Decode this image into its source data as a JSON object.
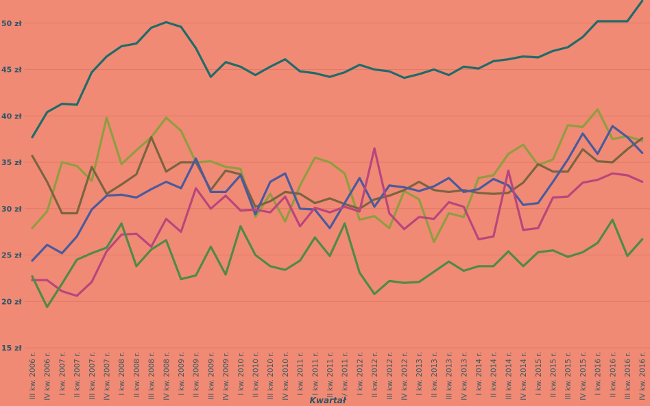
{
  "chart_data": {
    "type": "line",
    "title": "",
    "xlabel": "Kwartał",
    "ylabel": "",
    "ylim": [
      15,
      52.5
    ],
    "y_ticks": [
      "15 zł",
      "20 zł",
      "25 zł",
      "30 zł",
      "35 zł",
      "40 zł",
      "45 zł",
      "50 zł"
    ],
    "y_tick_values": [
      15,
      20,
      25,
      30,
      35,
      40,
      45,
      50
    ],
    "grid": "horizontal",
    "legend": "none",
    "background": "#f08a74",
    "categories": [
      "III kw. 2006 r.",
      "IV kw. 2006 r.",
      "I kw. 2007 r.",
      "II kw. 2007 r.",
      "III kw. 2007 r.",
      "IV kw. 2007 r.",
      "I kw. 2008 r.",
      "II kw. 2008 r.",
      "III kw. 2008 r.",
      "IV kw. 2008 r.",
      "I kw. 2009 r.",
      "II kw. 2009 r.",
      "III kw. 2009 r.",
      "IV kw. 2009 r.",
      "I kw. 2010 r.",
      "II kw. 2010 r.",
      "III kw. 2010 r.",
      "IV kw. 2010 r.",
      "I kw. 2011 r.",
      "II kw. 2011 r.",
      "III kw. 2011 r.",
      "IV kw. 2011 r.",
      "I kw. 2012 r.",
      "II kw. 2012 r.",
      "III kw. 2012 r.",
      "IV kw. 2012 r.",
      "I kw. 2013 r.",
      "II kw. 2013 r.",
      "III kw. 2013 r.",
      "IV kw. 2013 r.",
      "I kw. 2014 r.",
      "II kw. 2014 r.",
      "III kw. 2014 r.",
      "IV kw. 2014 r.",
      "I kw. 2015 r.",
      "II kw. 2015 r.",
      "III kw. 2015 r.",
      "IV kw. 2015 r.",
      "I kw. 2016 r.",
      "II kw. 2016 r.",
      "III kw. 2016 r.",
      "IV kw. 2016 r."
    ],
    "series": [
      {
        "color": "#1f6b6a",
        "values": [
          37.7,
          40.4,
          41.3,
          41.2,
          44.7,
          46.4,
          47.5,
          47.8,
          49.5,
          50.1,
          49.6,
          47.3,
          44.2,
          45.8,
          45.3,
          44.4,
          45.3,
          46.1,
          44.8,
          44.6,
          44.2,
          44.7,
          45.5,
          45.0,
          44.8,
          44.1,
          44.5,
          45.0,
          44.4,
          45.3,
          45.1,
          45.9,
          46.1,
          46.4,
          46.3,
          47.0,
          47.4,
          48.5,
          50.2,
          50.2,
          50.2,
          52.4
        ]
      },
      {
        "color": "#8f9d40",
        "values": [
          27.9,
          29.7,
          35.0,
          34.6,
          33.0,
          39.8,
          34.8,
          36.3,
          37.7,
          39.8,
          38.4,
          35.0,
          35.1,
          34.5,
          34.3,
          29.1,
          31.6,
          28.6,
          32.5,
          35.5,
          35.0,
          33.8,
          28.8,
          29.2,
          27.9,
          31.9,
          31.0,
          26.4,
          29.5,
          29.1,
          33.3,
          33.6,
          35.9,
          36.9,
          34.7,
          35.3,
          39.0,
          38.8,
          40.7,
          37.5,
          37.8,
          37.3
        ]
      },
      {
        "color": "#7b6440",
        "values": [
          35.7,
          32.9,
          29.5,
          29.5,
          34.5,
          31.6,
          32.6,
          33.7,
          37.7,
          34.0,
          35.0,
          35.0,
          32.0,
          34.1,
          33.7,
          30.2,
          30.8,
          31.8,
          31.6,
          30.6,
          31.1,
          30.5,
          30.0,
          31.0,
          31.4,
          32.0,
          32.9,
          32.0,
          31.8,
          32.0,
          31.7,
          31.6,
          31.7,
          32.8,
          34.8,
          34.0,
          34.0,
          36.4,
          35.1,
          35.0,
          36.4,
          37.6
        ]
      },
      {
        "color": "#4a5a9e",
        "values": [
          24.4,
          26.1,
          25.2,
          27.0,
          29.9,
          31.4,
          31.5,
          31.2,
          32.1,
          32.9,
          32.2,
          35.4,
          31.8,
          31.8,
          33.6,
          29.4,
          32.9,
          33.8,
          30.0,
          29.9,
          27.9,
          30.6,
          33.3,
          30.2,
          32.5,
          32.3,
          31.9,
          32.4,
          33.3,
          31.8,
          32.1,
          33.2,
          32.5,
          30.4,
          30.6,
          32.9,
          35.3,
          38.1,
          35.9,
          38.9,
          37.7,
          36.0
        ]
      },
      {
        "color": "#b8467c",
        "values": [
          22.3,
          22.3,
          21.1,
          20.6,
          22.1,
          25.4,
          27.2,
          27.3,
          25.9,
          28.9,
          27.5,
          32.2,
          30.0,
          31.4,
          29.8,
          29.9,
          29.6,
          31.3,
          28.1,
          30.1,
          29.6,
          30.2,
          29.7,
          36.5,
          29.5,
          27.8,
          29.1,
          28.9,
          30.7,
          30.2,
          26.7,
          27.0,
          34.1,
          27.7,
          27.9,
          31.2,
          31.3,
          32.8,
          33.1,
          33.8,
          33.6,
          32.9
        ]
      },
      {
        "color": "#4f8a47",
        "values": [
          22.7,
          19.4,
          21.9,
          24.5,
          25.2,
          25.8,
          28.4,
          23.8,
          25.6,
          26.6,
          22.4,
          22.8,
          25.9,
          22.9,
          28.1,
          25.0,
          23.8,
          23.4,
          24.4,
          26.9,
          24.9,
          28.4,
          23.1,
          20.8,
          22.2,
          22.0,
          22.1,
          23.2,
          24.3,
          23.3,
          23.8,
          23.8,
          25.4,
          23.8,
          25.3,
          25.5,
          24.8,
          25.3,
          26.3,
          28.8,
          24.9,
          26.7
        ]
      }
    ]
  }
}
